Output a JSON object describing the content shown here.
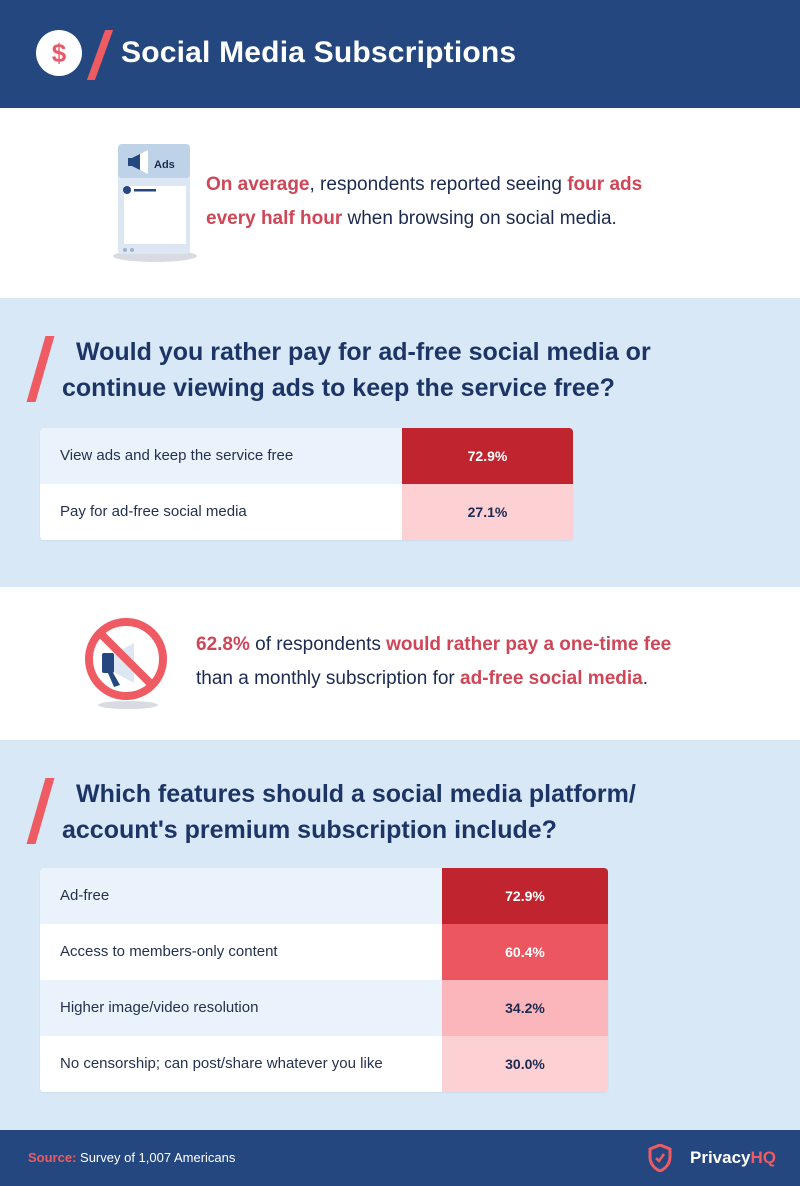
{
  "header": {
    "title": "Social Media Subscriptions",
    "icon": "dollar-coin-icon",
    "icon_glyph": "$"
  },
  "ads_stat": {
    "icon": "phone-ads-icon",
    "icon_label": "Ads",
    "line1_hl": "On average",
    "line1_rest": ", respondents reported seeing ",
    "line1_hl2": "four ads",
    "line2_hl": "every half hour",
    "line2_rest": " when browsing on social media."
  },
  "fee_stat": {
    "icon": "no-megaphone-icon",
    "line1_hl": "62.8%",
    "line1_mid": " of respondents ",
    "line1_hl2": "would rather pay a one-time fee",
    "line2_rest": "than a monthly subscription for ",
    "line2_hl": "ad-free social media",
    "line2_end": "."
  },
  "chart_data": [
    {
      "type": "table",
      "title_line1": "Would you rather pay for ad-free social media or",
      "title_line2": "continue viewing ads to keep the service free?",
      "rows": [
        {
          "label": "View ads and keep the service free",
          "value": 72.9,
          "display": "72.9%",
          "color": "#c0252f",
          "text_color": "#ffffff"
        },
        {
          "label": "Pay for ad-free social media",
          "value": 27.1,
          "display": "27.1%",
          "color": "#fdd0d4",
          "text_color": "#1c2a4f"
        }
      ]
    },
    {
      "type": "table",
      "title_line1": "Which features should a social media platform/",
      "title_line2": "account's premium subscription include?",
      "rows": [
        {
          "label": "Ad-free",
          "value": 72.9,
          "display": "72.9%",
          "color": "#c0252f",
          "text_color": "#ffffff"
        },
        {
          "label": "Access to members-only content",
          "value": 60.4,
          "display": "60.4%",
          "color": "#ec5661",
          "text_color": "#ffffff"
        },
        {
          "label": "Higher image/video resolution",
          "value": 34.2,
          "display": "34.2%",
          "color": "#fbb6bc",
          "text_color": "#1c2a4f"
        },
        {
          "label": "No censorship; can post/share whatever you like",
          "value": 30.0,
          "display": "30.0%",
          "color": "#fdd0d4",
          "text_color": "#1c2a4f"
        }
      ]
    }
  ],
  "footer": {
    "source_key": "Source:",
    "source_text": " Survey of 1,007 Americans",
    "brand_a": "Privacy",
    "brand_b": "HQ",
    "brand_icon": "shield-logo-icon"
  },
  "colors": {
    "navy": "#24477f",
    "accent": "#ef5b63",
    "panel": "#d8e8f6",
    "highlight_text": "#cf4657"
  }
}
